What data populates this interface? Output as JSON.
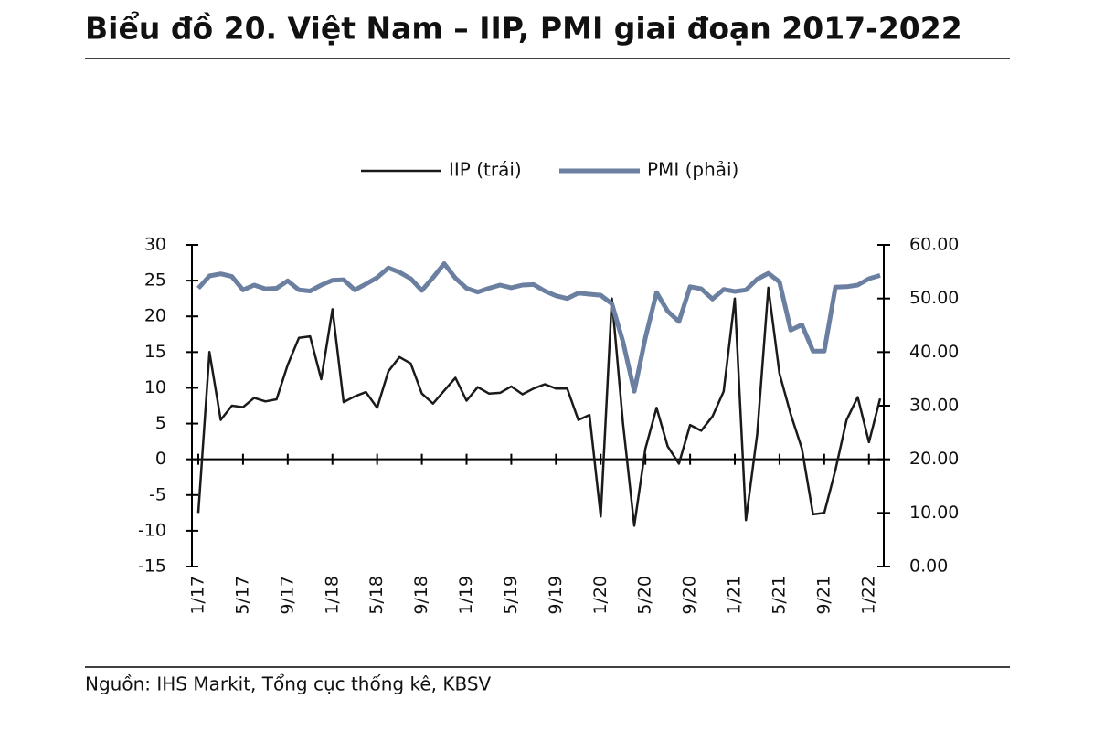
{
  "chart_data": {
    "type": "line",
    "title": "Biểu đồ 20. Việt Nam – IIP, PMI giai đoạn 2017-2022",
    "source": "Nguồn: IHS Markit, Tổng cục thống kê, KBSV",
    "categories": [
      "1/17",
      null,
      null,
      null,
      "5/17",
      null,
      null,
      null,
      "9/17",
      null,
      null,
      null,
      "1/18",
      null,
      null,
      null,
      "5/18",
      null,
      null,
      null,
      "9/18",
      null,
      null,
      null,
      "1/19",
      null,
      null,
      null,
      "5/19",
      null,
      null,
      null,
      "9/19",
      null,
      null,
      null,
      "1/20",
      null,
      null,
      null,
      "5/20",
      null,
      null,
      null,
      "9/20",
      null,
      null,
      null,
      "1/21",
      null,
      null,
      null,
      "5/21",
      null,
      null,
      null,
      "9/21",
      null,
      null,
      null,
      "1/22",
      null
    ],
    "series": [
      {
        "name": "IIP (trái)",
        "color": "#1a1a1a",
        "axis": "y",
        "values": [
          -7.5,
          15,
          5.5,
          7.5,
          7.3,
          8.6,
          8.1,
          8.4,
          13.2,
          17,
          17.2,
          11.2,
          21,
          8,
          8.8,
          9.4,
          7.2,
          12.3,
          14.3,
          13.4,
          9.2,
          7.8,
          9.6,
          11.4,
          8.2,
          10.1,
          9.2,
          9.3,
          10.2,
          9.1,
          9.9,
          10.5,
          9.9,
          9.9,
          5.5,
          6.2,
          -8,
          22.5,
          5,
          -9.3,
          1.5,
          7.2,
          1.8,
          -0.6,
          4.8,
          4,
          6,
          9.5,
          22.5,
          -8.5,
          3.5,
          24,
          12,
          6.3,
          1.5,
          -7.7,
          -7.5,
          -1.5,
          5.5,
          8.7,
          2.4,
          8.5
        ]
      },
      {
        "name": "PMI (phải)",
        "color": "#6b7fa0",
        "axis": "y2",
        "values": [
          51.9,
          54.2,
          54.6,
          54.1,
          51.6,
          52.5,
          51.8,
          51.9,
          53.3,
          51.6,
          51.4,
          52.5,
          53.4,
          53.5,
          51.6,
          52.7,
          53.9,
          55.7,
          54.9,
          53.7,
          51.5,
          53.9,
          56.5,
          53.8,
          51.9,
          51.2,
          51.9,
          52.5,
          52.0,
          52.5,
          52.6,
          51.4,
          50.5,
          50.0,
          51.0,
          50.8,
          50.6,
          49.0,
          41.9,
          32.7,
          42.7,
          51.1,
          47.6,
          45.7,
          52.2,
          51.8,
          49.9,
          51.7,
          51.3,
          51.6,
          53.6,
          54.7,
          53.1,
          44.1,
          45.1,
          40.2,
          40.2,
          52.1,
          52.2,
          52.5,
          53.7,
          54.3
        ]
      }
    ],
    "ylim": [
      -15,
      30
    ],
    "yticks": [
      30,
      25,
      20,
      15,
      10,
      5,
      0,
      -5,
      -10,
      -15
    ],
    "y2lim": [
      0,
      60
    ],
    "y2ticks": [
      {
        "value": 60,
        "label": "60.00"
      },
      {
        "value": 50,
        "label": "50.00"
      },
      {
        "value": 40,
        "label": "40.00"
      },
      {
        "value": 30,
        "label": "30.00"
      },
      {
        "value": 20,
        "label": "20.00"
      },
      {
        "value": 10,
        "label": "10.00"
      },
      {
        "value": 0,
        "label": "0.00"
      }
    ],
    "legend": "top"
  }
}
